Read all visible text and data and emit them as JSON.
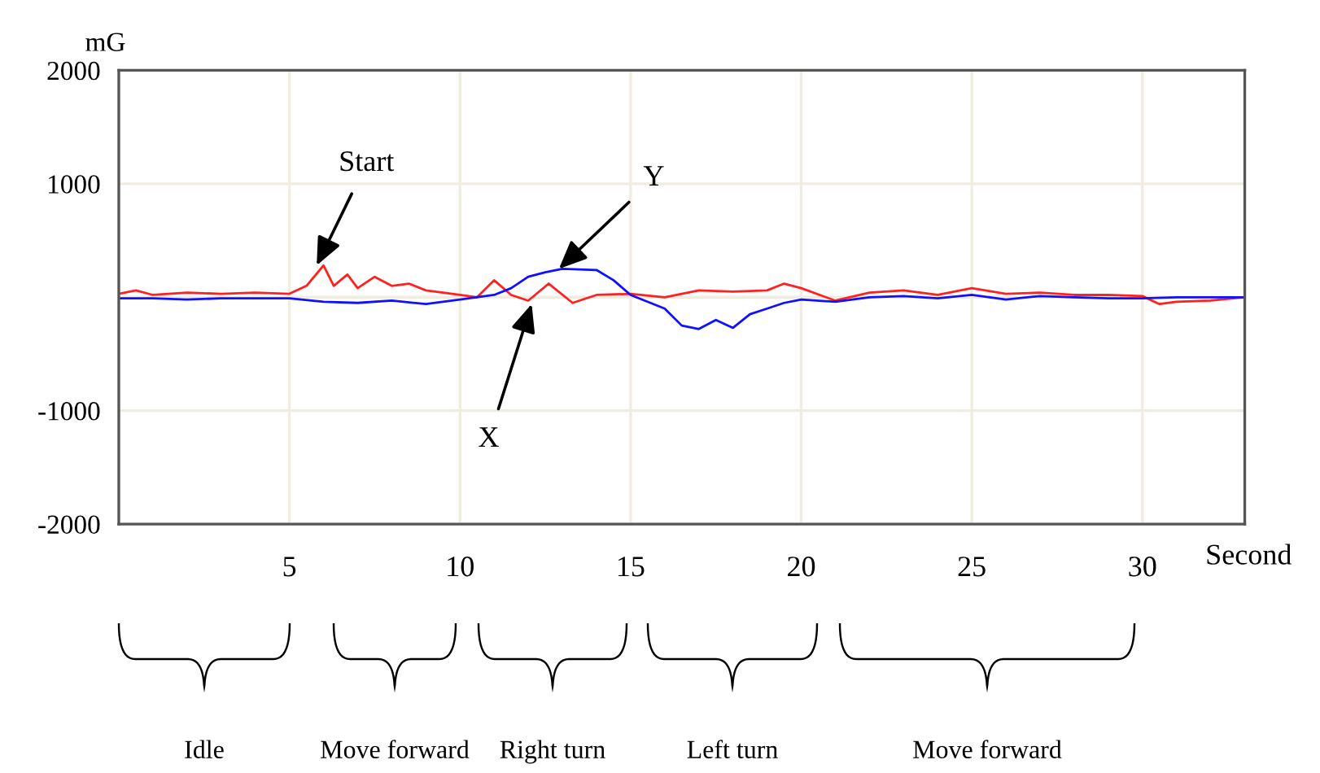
{
  "chart_data": {
    "type": "line",
    "ylabel": "mG",
    "xlabel": "Second",
    "xlim": [
      0,
      33
    ],
    "xticks": [
      5,
      10,
      15,
      20,
      25,
      30
    ],
    "ylim": [
      -2000,
      2000
    ],
    "yticks": [
      {
        "value": -2000,
        "label": "-2000"
      },
      {
        "value": -1000,
        "label": "-1000"
      },
      {
        "value": 0,
        "label": null
      },
      1000,
      2000
    ],
    "grid": true,
    "legend": false,
    "marker": "none",
    "line_style": "solid",
    "series": [
      {
        "color": "#ff2020",
        "x": [
          0,
          0.5,
          1,
          2,
          3,
          4,
          5,
          5.5,
          6,
          6.3,
          6.7,
          7,
          7.5,
          8,
          8.5,
          9,
          10,
          10.5,
          11,
          11.5,
          12,
          12.6,
          13.3,
          14,
          15,
          16,
          17,
          18,
          19,
          19.5,
          20,
          21,
          22,
          23,
          24,
          25,
          26,
          27,
          28,
          29,
          30,
          30.5,
          31,
          32,
          33
        ],
        "values": [
          30,
          60,
          20,
          40,
          30,
          40,
          30,
          100,
          280,
          100,
          200,
          80,
          180,
          100,
          120,
          60,
          20,
          0,
          150,
          20,
          -30,
          120,
          -50,
          20,
          30,
          0,
          60,
          50,
          60,
          120,
          80,
          -30,
          40,
          60,
          20,
          80,
          30,
          40,
          20,
          20,
          10,
          -60,
          -40,
          -30,
          0
        ]
      },
      {
        "color": "#1010ff",
        "x": [
          0,
          1,
          2,
          3,
          4,
          5,
          6,
          7,
          8,
          9,
          10,
          11,
          11.5,
          12,
          12.5,
          13,
          14,
          14.5,
          15,
          16,
          16.5,
          17,
          17.5,
          18,
          18.5,
          19,
          19.5,
          20,
          21,
          22,
          23,
          24,
          25,
          26,
          27,
          28,
          29,
          30,
          31,
          32,
          33
        ],
        "values": [
          -10,
          -10,
          -20,
          -10,
          -10,
          -10,
          -40,
          -50,
          -30,
          -60,
          -20,
          20,
          80,
          180,
          220,
          250,
          240,
          150,
          20,
          -100,
          -250,
          -280,
          -200,
          -270,
          -150,
          -100,
          -50,
          -20,
          -40,
          0,
          10,
          -10,
          20,
          -20,
          10,
          0,
          -10,
          -10,
          0,
          0,
          0
        ]
      }
    ],
    "annotations": [
      {
        "text": "Start",
        "x": 5.8,
        "y": 280
      },
      {
        "text": "Y",
        "x": 12.9,
        "y": 250
      },
      {
        "text": "X",
        "x": 12.1,
        "y": -60
      },
      "Idle",
      "Move forward",
      "Right turn",
      "Left turn",
      "Move forward"
    ]
  }
}
